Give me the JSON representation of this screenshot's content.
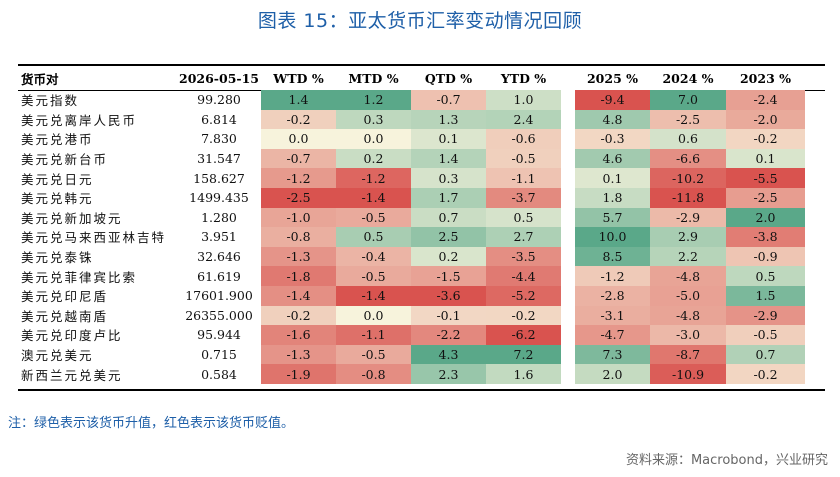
{
  "title": "图表 15：亚太货币汇率变动情况回顾",
  "table": {
    "headers": [
      "货币对",
      "2026-05-15",
      "WTD %",
      "MTD %",
      "QTD %",
      "YTD %",
      "2025 %",
      "2024 %",
      "2023 %"
    ],
    "rows": [
      {
        "name": "美元指数",
        "spot": "99.280",
        "values": [
          "1.4",
          "1.2",
          "-0.7",
          "1.0",
          "-9.4",
          "7.0",
          "-2.4"
        ]
      },
      {
        "name": "美元兑离岸人民币",
        "spot": "6.814",
        "values": [
          "-0.2",
          "0.3",
          "1.3",
          "2.4",
          "4.8",
          "-2.5",
          "-2.0"
        ]
      },
      {
        "name": "美元兑港币",
        "spot": "7.830",
        "values": [
          "0.0",
          "0.0",
          "0.1",
          "-0.6",
          "-0.3",
          "0.6",
          "-0.2"
        ]
      },
      {
        "name": "美元兑新台币",
        "spot": "31.547",
        "values": [
          "-0.7",
          "0.2",
          "1.4",
          "-0.5",
          "4.6",
          "-6.6",
          "0.1"
        ]
      },
      {
        "name": "美元兑日元",
        "spot": "158.627",
        "values": [
          "-1.2",
          "-1.2",
          "0.3",
          "-1.1",
          "0.1",
          "-10.2",
          "-5.5"
        ]
      },
      {
        "name": "美元兑韩元",
        "spot": "1499.435",
        "values": [
          "-2.5",
          "-1.4",
          "1.7",
          "-3.7",
          "1.8",
          "-11.8",
          "-2.5"
        ]
      },
      {
        "name": "美元兑新加坡元",
        "spot": "1.280",
        "values": [
          "-1.0",
          "-0.5",
          "0.7",
          "0.5",
          "5.7",
          "-2.9",
          "2.0"
        ]
      },
      {
        "name": "美元兑马来西亚林吉特",
        "spot": "3.951",
        "values": [
          "-0.8",
          "0.5",
          "2.5",
          "2.7",
          "10.0",
          "2.9",
          "-3.8"
        ]
      },
      {
        "name": "美元兑泰铢",
        "spot": "32.646",
        "values": [
          "-1.3",
          "-0.4",
          "0.2",
          "-3.5",
          "8.5",
          "2.2",
          "-0.9"
        ]
      },
      {
        "name": "美元兑菲律宾比索",
        "spot": "61.619",
        "values": [
          "-1.8",
          "-0.5",
          "-1.5",
          "-4.4",
          "-1.2",
          "-4.8",
          "0.5"
        ]
      },
      {
        "name": "美元兑印尼盾",
        "spot": "17601.900",
        "values": [
          "-1.4",
          "-1.4",
          "-3.6",
          "-5.2",
          "-2.8",
          "-5.0",
          "1.5"
        ]
      },
      {
        "name": "美元兑越南盾",
        "spot": "26355.000",
        "values": [
          "-0.2",
          "0.0",
          "-0.1",
          "-0.2",
          "-3.1",
          "-4.8",
          "-2.9"
        ]
      },
      {
        "name": "美元兑印度卢比",
        "spot": "95.944",
        "values": [
          "-1.6",
          "-1.1",
          "-2.2",
          "-6.2",
          "-4.7",
          "-3.0",
          "-0.5"
        ]
      },
      {
        "name": "澳元兑美元",
        "spot": "0.715",
        "values": [
          "-1.3",
          "-0.5",
          "4.3",
          "7.2",
          "7.3",
          "-8.7",
          "0.7"
        ]
      },
      {
        "name": "新西兰元兑美元",
        "spot": "0.584",
        "values": [
          "-1.9",
          "-0.8",
          "2.3",
          "1.6",
          "2.0",
          "-10.9",
          "-0.2"
        ]
      }
    ]
  },
  "note": "注：绿色表示该货币升值，红色表示该货币贬值。",
  "source": "资料来源：Macrobond，兴业研究",
  "colors": {
    "positive": "#5aa889",
    "neutral": "#f7f3dc",
    "negative": "#d9534f",
    "title": "#1e5fa8"
  }
}
